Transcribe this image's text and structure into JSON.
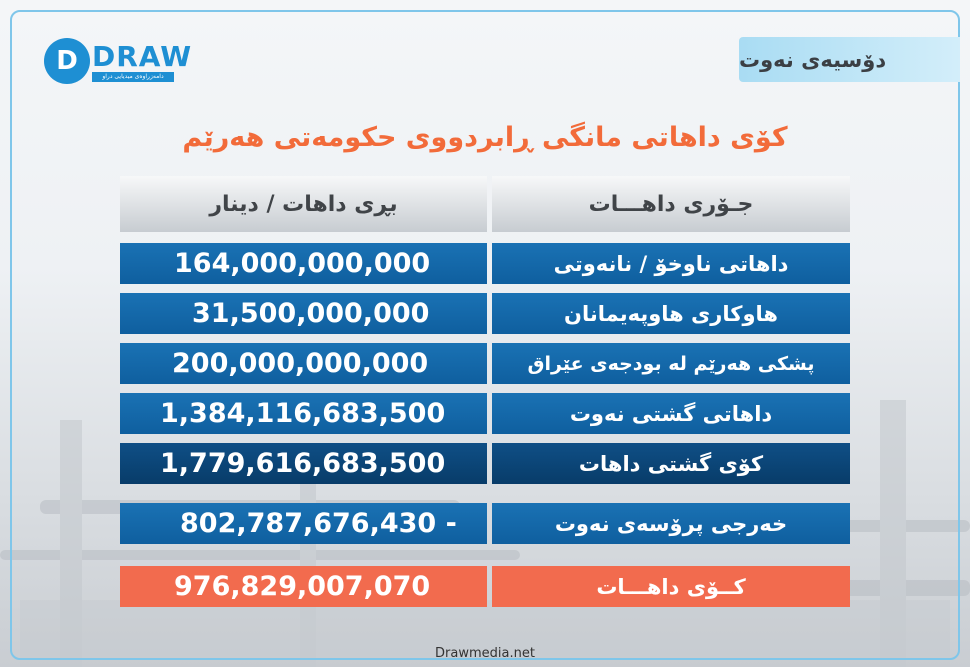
{
  "header": {
    "logo_text": "DRAW",
    "logo_letter": "D",
    "logo_tagline": "دامەزراوەی میدیایی دراو",
    "badge": "دۆسیەی نەوت"
  },
  "title": "کۆی داهاتی مانگی ڕابردووی حکومەتی هەرێم",
  "table": {
    "header_amount": "بڕی داهات / دینار",
    "header_type": "جـۆری داهـــات",
    "rows": [
      {
        "type": "داهاتی ناوخۆ / نانەوتی",
        "amount": "164,000,000,000"
      },
      {
        "type": "هاوکاری هاوپەیمانان",
        "amount": "31,500,000,000"
      },
      {
        "type": "پشکی هەرێم لە بودجەی عێراق",
        "amount": "200,000,000,000"
      },
      {
        "type": "داهاتی گشتی نەوت",
        "amount": "1,384,116,683,500"
      },
      {
        "type": "کۆی گشتی داهات",
        "amount": "1,779,616,683,500"
      },
      {
        "type": "خەرجی پرۆسەی نەوت",
        "amount": "802,787,676,430 -"
      },
      {
        "type": "کــۆی داهـــات",
        "amount": "976,829,007,070"
      }
    ]
  },
  "footer": "Drawmedia.net",
  "colors": {
    "accent": "#f26b3a",
    "brand_blue": "#1e8fd3",
    "row_blue": "#1a72b4",
    "total_orange": "#f26b4e"
  }
}
